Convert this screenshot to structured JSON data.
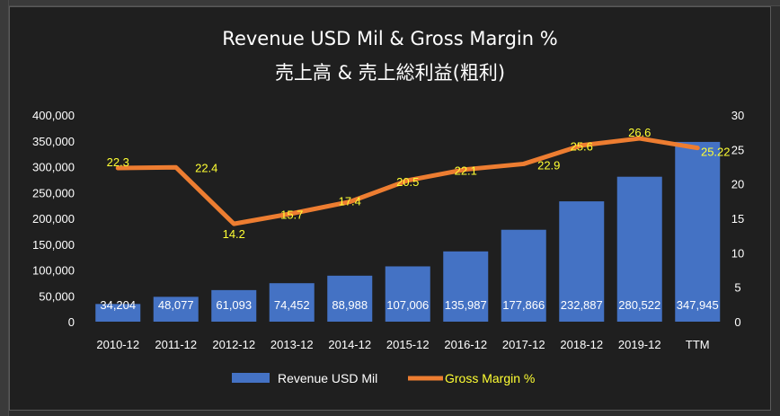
{
  "chart_data": {
    "type": "bar",
    "title": "Revenue USD Mil & Gross Margin %",
    "subtitle": "売上高 & 売上総利益(粗利)",
    "categories": [
      "2010-12",
      "2011-12",
      "2012-12",
      "2013-12",
      "2014-12",
      "2015-12",
      "2016-12",
      "2017-12",
      "2018-12",
      "2019-12",
      "TTM"
    ],
    "series": [
      {
        "name": "Revenue USD Mil",
        "type": "bar",
        "axis": "left",
        "color": "#4472c4",
        "values": [
          34204,
          48077,
          61093,
          74452,
          88988,
          107006,
          135987,
          177866,
          232887,
          280522,
          347945
        ],
        "labels": [
          "34,204",
          "48,077",
          "61,093",
          "74,452",
          "88,988",
          "107,006",
          "135,987",
          "177,866",
          "232,887",
          "280,522",
          "347,945"
        ]
      },
      {
        "name": "Gross Margin %",
        "type": "line",
        "axis": "right",
        "color": "#ed7d31",
        "values": [
          22.3,
          22.4,
          14.2,
          15.7,
          17.4,
          20.5,
          22.1,
          22.9,
          25.6,
          26.6,
          25.22
        ],
        "labels": [
          "22.3",
          "22.4",
          "14.2",
          "15.7",
          "17.4",
          "20.5",
          "22.1",
          "22.9",
          "25.6",
          "26.6",
          "25.22"
        ]
      }
    ],
    "ylim_left": [
      0,
      400000
    ],
    "yticks_left": [
      "400,000",
      "350,000",
      "300,000",
      "250,000",
      "200,000",
      "150,000",
      "100,000",
      "50,000",
      "0"
    ],
    "ylim_right": [
      0,
      30
    ],
    "yticks_right": [
      "30",
      "25",
      "20",
      "15",
      "10",
      "5",
      "0"
    ],
    "grid": false,
    "legend_position": "bottom",
    "label_color": "#ffff33"
  }
}
